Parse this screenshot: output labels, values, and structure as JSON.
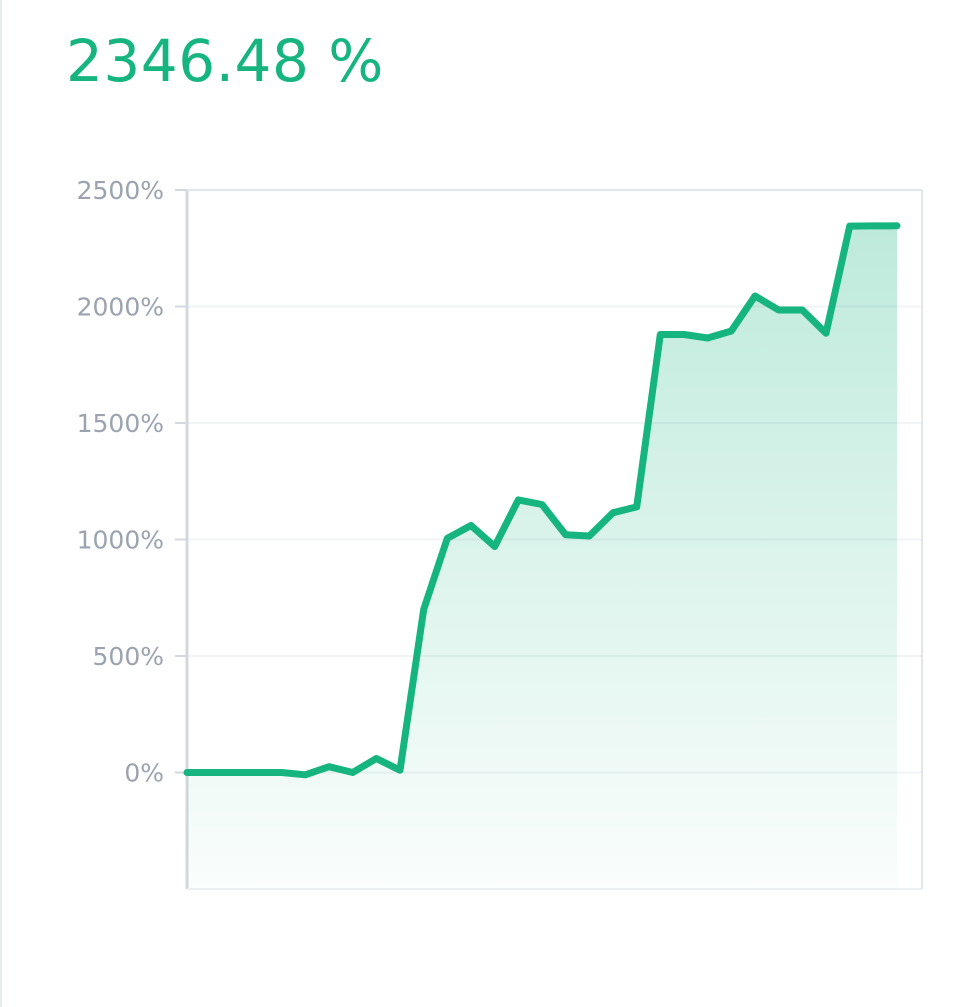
{
  "headline": {
    "value": "2346.48 %",
    "color": "#16b57f"
  },
  "chart_data": {
    "type": "area",
    "title": "",
    "xlabel": "",
    "ylabel": "",
    "y_unit": "%",
    "ylim": [
      -500,
      2500
    ],
    "yticks": [
      0,
      500,
      1000,
      1500,
      2000,
      2500
    ],
    "ytick_labels": [
      "0%",
      "500%",
      "1000%",
      "1500%",
      "2000%",
      "2500%"
    ],
    "grid": "horizontal",
    "legend": "none",
    "series": [
      {
        "line_color": "#16b57f",
        "fill_color": "#16b57f",
        "values": [
          0,
          0,
          0,
          0,
          0,
          -10,
          25,
          0,
          60,
          10,
          700,
          1005,
          1060,
          970,
          1170,
          1150,
          1020,
          1015,
          1115,
          1140,
          1880,
          1880,
          1865,
          1895,
          2045,
          1985,
          1985,
          1885,
          2345,
          2346,
          2346.48
        ]
      }
    ]
  }
}
